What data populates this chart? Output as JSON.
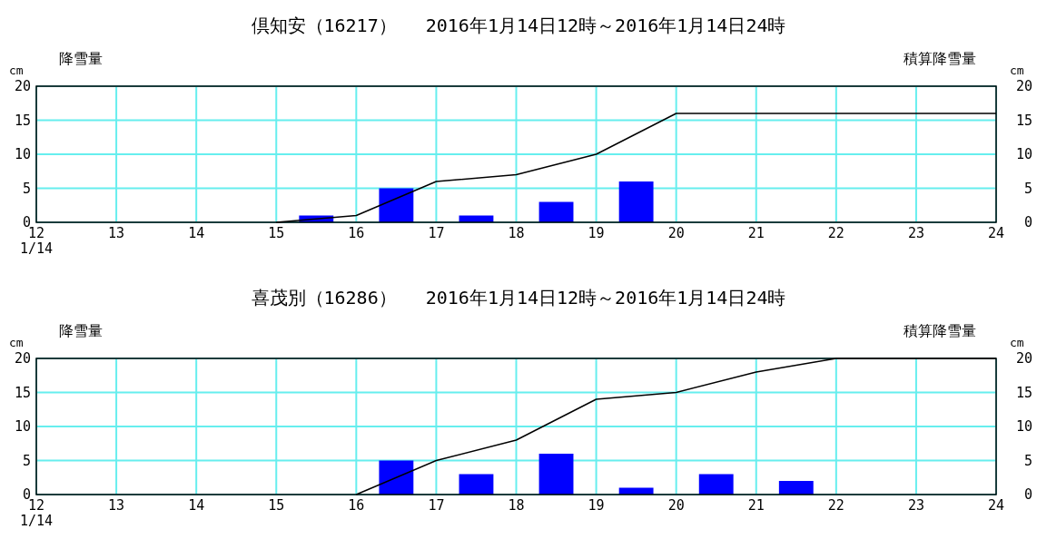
{
  "chart_data": [
    {
      "type": "bar",
      "title": "倶知安（16217）　 2016年1月14日12時～2016年1月14日24時",
      "ylabel": "降雪量",
      "y2label": "積算降雪量",
      "annotations": [
        "cm",
        "cm"
      ],
      "xlim": [
        12,
        24
      ],
      "xticks": [
        {
          "value": 12,
          "label": "12\n1/14"
        },
        13,
        14,
        15,
        16,
        17,
        18,
        19,
        20,
        21,
        22,
        23,
        24
      ],
      "ylim": [
        0,
        20
      ],
      "yticks": [
        0,
        5,
        10,
        15,
        20
      ],
      "y2lim": [
        0,
        20
      ],
      "y2ticks": [
        0,
        5,
        10,
        15,
        20
      ],
      "grid": true,
      "series": [
        {
          "color": "#0000ff",
          "x": [
            15.5,
            16.5,
            17.5,
            18.5,
            19.5
          ],
          "values": [
            1,
            5,
            1,
            3,
            6
          ]
        },
        {
          "type": "line",
          "color": "#000000",
          "x": [
            15,
            16,
            17,
            18,
            19,
            20,
            24
          ],
          "values": [
            0,
            1,
            6,
            7,
            10,
            16,
            16
          ]
        }
      ]
    },
    {
      "type": "bar",
      "title": "喜茂別（16286）　 2016年1月14日12時～2016年1月14日24時",
      "ylabel": "降雪量",
      "y2label": "積算降雪量",
      "annotations": [
        "cm",
        "cm"
      ],
      "xlim": [
        12,
        24
      ],
      "xticks": [
        {
          "value": 12,
          "label": "12\n1/14"
        },
        13,
        14,
        15,
        16,
        17,
        18,
        19,
        20,
        21,
        22,
        23,
        24
      ],
      "ylim": [
        0,
        20
      ],
      "yticks": [
        0,
        5,
        10,
        15,
        20
      ],
      "y2lim": [
        0,
        20
      ],
      "y2ticks": [
        0,
        5,
        10,
        15,
        20
      ],
      "grid": true,
      "series": [
        {
          "color": "#0000ff",
          "x": [
            16.5,
            17.5,
            18.5,
            19.5,
            20.5,
            21.5
          ],
          "values": [
            5,
            3,
            6,
            1,
            3,
            2
          ]
        },
        {
          "type": "line",
          "color": "#000000",
          "x": [
            16,
            17,
            18,
            19,
            20,
            21,
            22,
            24
          ],
          "values": [
            0,
            5,
            8,
            14,
            15,
            18,
            20,
            20
          ]
        }
      ]
    }
  ]
}
